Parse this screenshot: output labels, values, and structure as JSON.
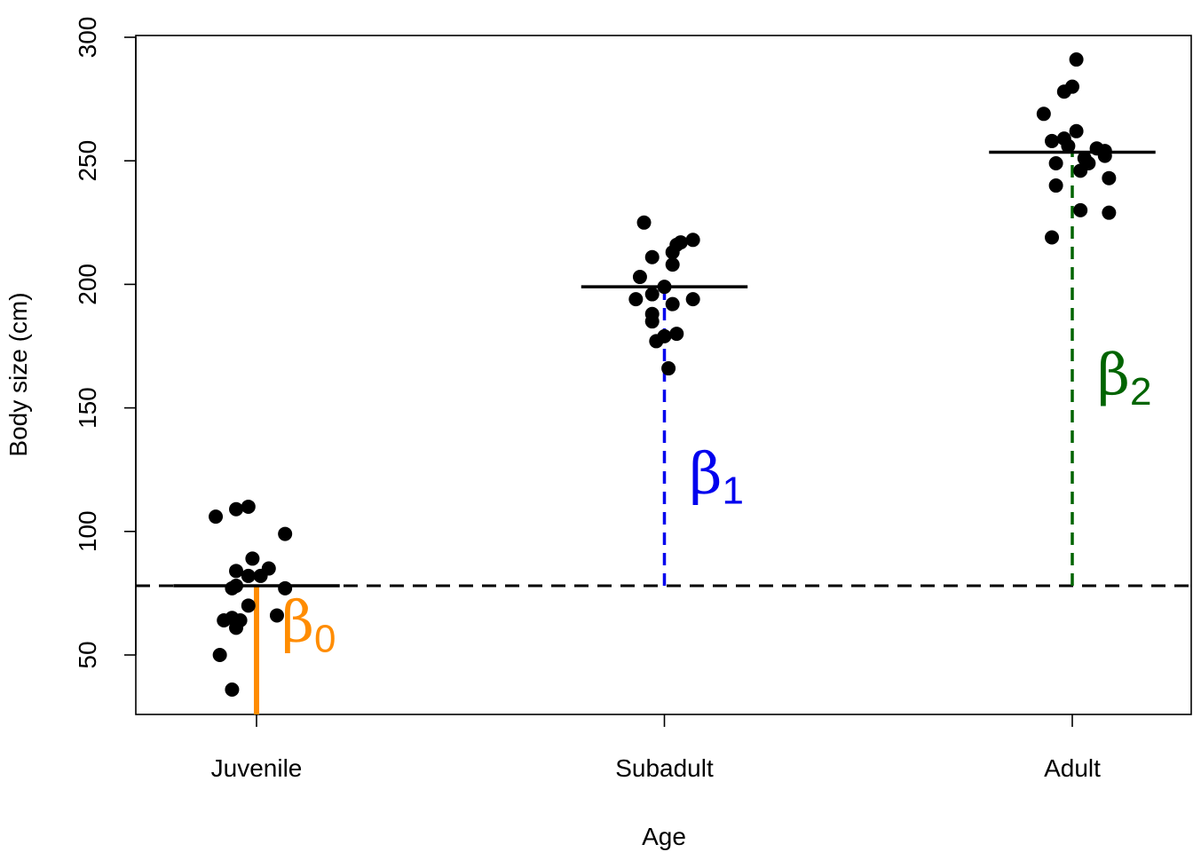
{
  "chart_data": {
    "type": "scatter",
    "xlabel": "Age",
    "ylabel": "Body size (cm)",
    "ylim": [
      25,
      300
    ],
    "yticks": [
      50,
      100,
      150,
      200,
      250,
      300
    ],
    "categories": [
      "Juvenile",
      "Subadult",
      "Adult"
    ],
    "grid": false,
    "reference_line": {
      "value": 78,
      "style": "dashed",
      "color": "#000000"
    },
    "group_means": [
      78,
      199,
      253.5
    ],
    "groups": [
      {
        "category": "Juvenile",
        "points": [
          {
            "dx": -0.1,
            "y": 106
          },
          {
            "dx": -0.05,
            "y": 109
          },
          {
            "dx": -0.02,
            "y": 110
          },
          {
            "dx": 0.07,
            "y": 99
          },
          {
            "dx": -0.01,
            "y": 89
          },
          {
            "dx": -0.05,
            "y": 84
          },
          {
            "dx": -0.02,
            "y": 82
          },
          {
            "dx": 0.01,
            "y": 82
          },
          {
            "dx": 0.03,
            "y": 85
          },
          {
            "dx": -0.06,
            "y": 77
          },
          {
            "dx": -0.05,
            "y": 78
          },
          {
            "dx": 0.07,
            "y": 77
          },
          {
            "dx": -0.02,
            "y": 70
          },
          {
            "dx": 0.05,
            "y": 66
          },
          {
            "dx": -0.08,
            "y": 64
          },
          {
            "dx": -0.06,
            "y": 65
          },
          {
            "dx": -0.04,
            "y": 64
          },
          {
            "dx": -0.05,
            "y": 61
          },
          {
            "dx": -0.09,
            "y": 50
          },
          {
            "dx": -0.06,
            "y": 36
          }
        ]
      },
      {
        "category": "Subadult",
        "points": [
          {
            "dx": -0.05,
            "y": 225
          },
          {
            "dx": 0.07,
            "y": 218
          },
          {
            "dx": 0.04,
            "y": 217
          },
          {
            "dx": 0.03,
            "y": 216
          },
          {
            "dx": 0.02,
            "y": 213
          },
          {
            "dx": -0.03,
            "y": 211
          },
          {
            "dx": 0.02,
            "y": 208
          },
          {
            "dx": -0.06,
            "y": 203
          },
          {
            "dx": 0.0,
            "y": 199
          },
          {
            "dx": -0.03,
            "y": 196
          },
          {
            "dx": -0.07,
            "y": 194
          },
          {
            "dx": 0.07,
            "y": 194
          },
          {
            "dx": 0.02,
            "y": 192
          },
          {
            "dx": -0.03,
            "y": 188
          },
          {
            "dx": -0.03,
            "y": 185
          },
          {
            "dx": 0.03,
            "y": 180
          },
          {
            "dx": 0.0,
            "y": 179
          },
          {
            "dx": -0.02,
            "y": 177
          },
          {
            "dx": 0.01,
            "y": 166
          }
        ]
      },
      {
        "category": "Adult",
        "points": [
          {
            "dx": 0.01,
            "y": 291
          },
          {
            "dx": 0.0,
            "y": 280
          },
          {
            "dx": -0.02,
            "y": 278
          },
          {
            "dx": -0.07,
            "y": 269
          },
          {
            "dx": 0.01,
            "y": 262
          },
          {
            "dx": -0.05,
            "y": 258
          },
          {
            "dx": -0.02,
            "y": 259
          },
          {
            "dx": -0.01,
            "y": 256
          },
          {
            "dx": 0.06,
            "y": 255
          },
          {
            "dx": 0.08,
            "y": 254
          },
          {
            "dx": 0.08,
            "y": 252
          },
          {
            "dx": 0.03,
            "y": 251
          },
          {
            "dx": 0.04,
            "y": 249
          },
          {
            "dx": -0.04,
            "y": 249
          },
          {
            "dx": 0.02,
            "y": 246
          },
          {
            "dx": 0.09,
            "y": 243
          },
          {
            "dx": -0.04,
            "y": 240
          },
          {
            "dx": 0.02,
            "y": 230
          },
          {
            "dx": 0.09,
            "y": 229
          },
          {
            "dx": -0.05,
            "y": 219
          }
        ]
      }
    ],
    "annotations": [
      {
        "symbol": "β",
        "subscript": "0",
        "color": "#ff8c00",
        "line": "solid",
        "category": "Juvenile",
        "from": 25,
        "to": 78,
        "label_y": 62
      },
      {
        "symbol": "β",
        "subscript": "1",
        "color": "#0000ee",
        "line": "dashed",
        "category": "Subadult",
        "from": 78,
        "to": 199,
        "label_y": 122
      },
      {
        "symbol": "β",
        "subscript": "2",
        "color": "#006400",
        "line": "dashed",
        "category": "Adult",
        "from": 78,
        "to": 253.5,
        "label_y": 162
      }
    ]
  }
}
